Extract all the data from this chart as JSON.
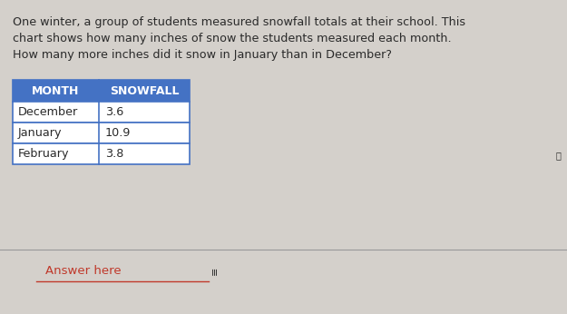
{
  "title_line1": "One winter, a group of students measured snowfall totals at their school. This",
  "title_line2": "chart shows how many inches of snow the students measured each month.",
  "title_line3": "How many more inches did it snow in January than in December?",
  "header": [
    "MONTH",
    "SNOWFALL"
  ],
  "rows": [
    [
      "December",
      "3.6"
    ],
    [
      "January",
      "10.9"
    ],
    [
      "February",
      "3.8"
    ]
  ],
  "answer_label": "Answer here",
  "bg_color": "#d4d0cb",
  "header_bg": "#4472c4",
  "header_text_color": "#ffffff",
  "cell_bg": "#ffffff",
  "border_color": "#4472c4",
  "text_color": "#2a2a2a",
  "answer_text_color": "#c0392b",
  "answer_line_color": "#c0392b",
  "divider_color": "#999999",
  "title_fontsize": 9.2,
  "header_fontsize": 9.0,
  "cell_fontsize": 9.2,
  "answer_fontsize": 9.5
}
